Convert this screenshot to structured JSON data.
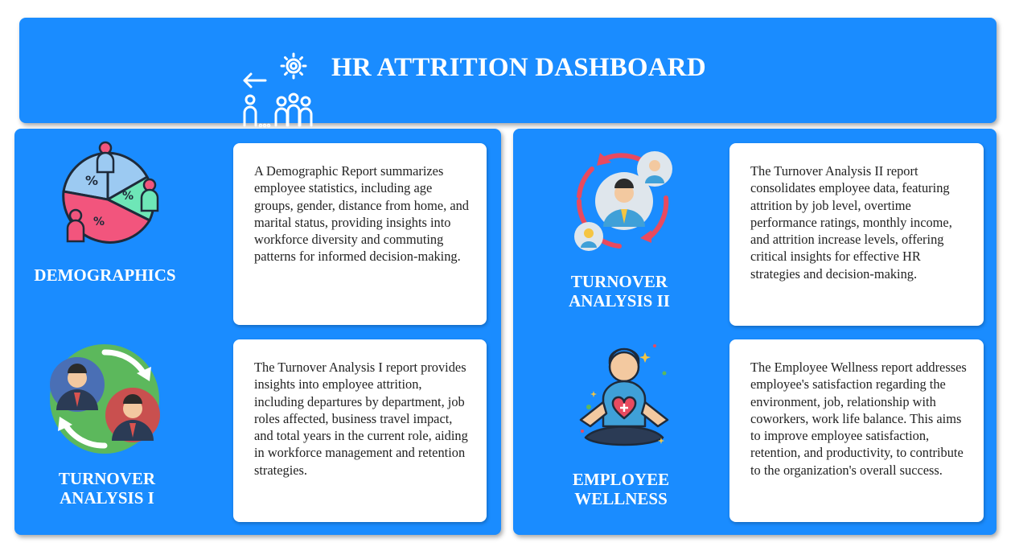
{
  "header": {
    "title": "HR ATTRITION DASHBOARD",
    "icon": "hr-team-gear-icon"
  },
  "sections": {
    "demographics": {
      "title": "DEMOGRAPHICS",
      "icon": "demographics-pie-people-icon",
      "description": "A Demographic Report summarizes employee statistics, including age groups, gender, distance from home, and marital status, providing insights into workforce diversity and commuting patterns for informed decision-making."
    },
    "turnover1": {
      "title_line1": "TURNOVER",
      "title_line2": "ANALYSIS I",
      "icon": "employee-swap-icon",
      "description": "The Turnover Analysis I report provides insights into employee attrition, including departures by department, job roles affected, business travel impact, and total years in the current role, aiding in workforce management and retention strategies."
    },
    "turnover2": {
      "title_line1": "TURNOVER",
      "title_line2": "ANALYSIS II",
      "icon": "employee-rotation-icon",
      "description": "The Turnover Analysis II report consolidates employee data, featuring attrition by job level, overtime performance ratings, monthly income, and attrition increase levels, offering critical insights for effective HR strategies and decision-making."
    },
    "wellness": {
      "title_line1": "EMPLOYEE",
      "title_line2": "WELLNESS",
      "icon": "meditation-heart-icon",
      "description": "The Employee Wellness report addresses employee's satisfaction regarding the environment, job, relationship with coworkers, work life balance. This aims to improve employee satisfaction, retention, and productivity, to contribute to the organization's overall success."
    }
  },
  "colors": {
    "primary_blue": "#1a8cff",
    "card_white": "#ffffff",
    "pie_blue": "#9ccaf2",
    "pie_green": "#6ee6b7",
    "pie_pink": "#f2557d"
  }
}
